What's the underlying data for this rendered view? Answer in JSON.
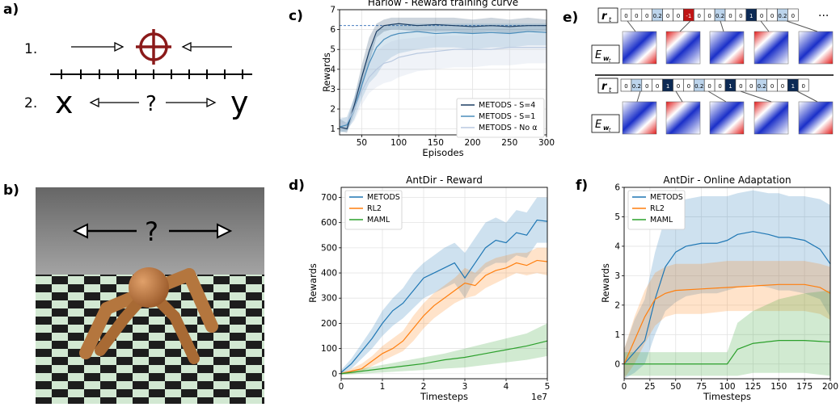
{
  "labels": {
    "a": "a)",
    "b": "b)",
    "c": "c)",
    "d": "d)",
    "e": "e)",
    "f": "f)"
  },
  "panel_a": {
    "row1": "1.",
    "row2": "2.",
    "left": "x",
    "right": "y",
    "question": "?"
  },
  "panel_b": {
    "question": "?"
  },
  "panel_e": {
    "r_label": "r",
    "r_sub": "t",
    "e_label": "E",
    "e_sub": "w",
    "e_subsub": "t",
    "dots": "···",
    "row1": [
      "0",
      "0",
      "0",
      "0.2",
      "0",
      "0",
      "-1",
      "0",
      "0",
      "0.2",
      "0",
      "0",
      "1",
      "0",
      "0",
      "0.2",
      "0"
    ],
    "row2": [
      "0",
      "0.2",
      "0",
      "0",
      "1",
      "0",
      "0",
      "0.2",
      "0",
      "0",
      "1",
      "0",
      "0",
      "0.2",
      "0",
      "0",
      "1",
      "0"
    ]
  },
  "colors": {
    "metods": "#1f77b4",
    "rl2": "#ff7f0e",
    "maml": "#2ca02c",
    "harlow_s4": "#1d3e63",
    "harlow_s1": "#4a8dbb",
    "harlow_no": "#b9c9e0",
    "target": "#8b1a1a"
  },
  "chart_data": [
    {
      "id": "harlow",
      "type": "line",
      "title": "Harlow - Reward training curve",
      "xlabel": "Episodes",
      "ylabel": "Rewards",
      "xlim": [
        20,
        300
      ],
      "ylim": [
        0.7,
        7.0
      ],
      "xticks": [
        50,
        100,
        150,
        200,
        250,
        300
      ],
      "yticks": [
        1,
        2,
        3,
        4,
        5,
        6,
        7
      ],
      "grid": true,
      "legend_position": "lower-right",
      "reference_line": 6.2,
      "series": [
        {
          "name": "METODS - S=4",
          "x": [
            20,
            30,
            40,
            50,
            60,
            70,
            80,
            90,
            100,
            125,
            150,
            175,
            200,
            225,
            250,
            275,
            300
          ],
          "y": [
            1.1,
            1.0,
            2.2,
            3.6,
            4.9,
            5.9,
            6.2,
            6.25,
            6.3,
            6.2,
            6.25,
            6.2,
            6.15,
            6.2,
            6.15,
            6.2,
            6.2
          ],
          "lower": [
            0.9,
            0.8,
            1.8,
            3.0,
            4.3,
            5.6,
            5.9,
            6.0,
            6.0,
            5.9,
            5.9,
            5.9,
            5.8,
            5.9,
            5.8,
            5.9,
            5.9
          ],
          "upper": [
            1.5,
            1.3,
            2.6,
            4.2,
            5.6,
            6.3,
            6.5,
            6.6,
            6.6,
            6.6,
            6.6,
            6.6,
            6.5,
            6.6,
            6.5,
            6.6,
            6.5
          ]
        },
        {
          "name": "METODS - S=1",
          "x": [
            20,
            30,
            40,
            50,
            60,
            70,
            80,
            90,
            100,
            125,
            150,
            175,
            200,
            225,
            250,
            275,
            300
          ],
          "y": [
            1.1,
            1.2,
            2.0,
            3.2,
            4.3,
            5.1,
            5.5,
            5.7,
            5.8,
            5.9,
            5.8,
            5.85,
            5.8,
            5.85,
            5.8,
            5.9,
            5.85
          ],
          "lower": [
            0.8,
            0.9,
            1.5,
            2.5,
            3.3,
            3.7,
            4.3,
            4.6,
            4.8,
            5.0,
            5.1,
            5.1,
            5.0,
            5.1,
            5.1,
            5.2,
            5.2
          ],
          "upper": [
            1.5,
            1.6,
            2.6,
            3.8,
            5.0,
            5.9,
            6.2,
            6.3,
            6.3,
            6.3,
            6.3,
            6.3,
            6.3,
            6.3,
            6.3,
            6.3,
            6.3
          ]
        },
        {
          "name": "METODS - No α",
          "x": [
            20,
            30,
            40,
            50,
            60,
            70,
            80,
            90,
            100,
            125,
            150,
            175,
            200,
            225,
            250,
            275,
            300
          ],
          "y": [
            1.2,
            1.3,
            2.0,
            2.9,
            3.6,
            4.0,
            4.3,
            4.4,
            4.6,
            4.8,
            4.9,
            5.0,
            5.0,
            5.0,
            5.1,
            5.1,
            5.1
          ],
          "lower": [
            0.9,
            1.0,
            1.4,
            2.2,
            2.8,
            3.1,
            3.3,
            3.4,
            3.6,
            3.9,
            4.0,
            4.1,
            4.1,
            4.2,
            4.2,
            4.3,
            4.3
          ],
          "upper": [
            1.6,
            1.6,
            2.6,
            3.6,
            4.4,
            4.9,
            5.2,
            5.4,
            5.5,
            5.6,
            5.7,
            5.7,
            5.7,
            5.8,
            5.8,
            5.8,
            5.8
          ]
        }
      ]
    },
    {
      "id": "antdir_reward",
      "type": "line",
      "title": "AntDir - Reward",
      "xlabel": "Timesteps",
      "ylabel": "Rewards",
      "x_multiplier": "1e7",
      "xlim": [
        0,
        5
      ],
      "ylim": [
        -20,
        740
      ],
      "xticks": [
        0,
        1,
        2,
        3,
        4,
        5
      ],
      "yticks": [
        0,
        100,
        200,
        300,
        400,
        500,
        600,
        700
      ],
      "grid": true,
      "legend_position": "top-left",
      "series": [
        {
          "name": "METODS",
          "x": [
            0,
            0.25,
            0.5,
            0.75,
            1.0,
            1.25,
            1.5,
            1.75,
            2.0,
            2.25,
            2.5,
            2.75,
            3.0,
            3.25,
            3.5,
            3.75,
            4.0,
            4.25,
            4.5,
            4.75,
            5.0
          ],
          "y": [
            5,
            40,
            90,
            140,
            200,
            250,
            280,
            330,
            380,
            400,
            420,
            440,
            380,
            440,
            500,
            530,
            520,
            560,
            550,
            610,
            605
          ],
          "lower": [
            0,
            20,
            60,
            100,
            150,
            190,
            220,
            260,
            300,
            320,
            340,
            360,
            300,
            380,
            420,
            440,
            440,
            470,
            460,
            520,
            520
          ],
          "upper": [
            15,
            60,
            120,
            180,
            250,
            300,
            340,
            400,
            440,
            470,
            500,
            520,
            480,
            540,
            600,
            620,
            600,
            650,
            640,
            700,
            700
          ]
        },
        {
          "name": "RL2",
          "x": [
            0,
            0.25,
            0.5,
            0.75,
            1.0,
            1.25,
            1.5,
            1.75,
            2.0,
            2.25,
            2.5,
            2.75,
            3.0,
            3.25,
            3.5,
            3.75,
            4.0,
            4.25,
            4.5,
            4.75,
            5.0
          ],
          "y": [
            0,
            10,
            20,
            50,
            80,
            100,
            130,
            180,
            230,
            270,
            300,
            330,
            360,
            350,
            390,
            410,
            420,
            440,
            430,
            450,
            445
          ],
          "lower": [
            0,
            0,
            10,
            30,
            50,
            70,
            90,
            130,
            180,
            220,
            250,
            280,
            300,
            310,
            340,
            360,
            380,
            400,
            390,
            400,
            390
          ],
          "upper": [
            5,
            20,
            40,
            70,
            110,
            140,
            170,
            230,
            280,
            320,
            350,
            380,
            420,
            400,
            440,
            460,
            470,
            480,
            480,
            500,
            500
          ]
        },
        {
          "name": "MAML",
          "x": [
            0,
            0.5,
            1.0,
            1.5,
            2.0,
            2.5,
            3.0,
            3.5,
            4.0,
            4.5,
            5.0
          ],
          "y": [
            0,
            10,
            20,
            30,
            40,
            55,
            65,
            80,
            95,
            110,
            130
          ],
          "lower": [
            -5,
            0,
            5,
            10,
            15,
            20,
            25,
            35,
            45,
            55,
            70
          ],
          "upper": [
            5,
            20,
            35,
            50,
            65,
            80,
            100,
            120,
            140,
            160,
            200
          ]
        }
      ]
    },
    {
      "id": "antdir_adapt",
      "type": "line",
      "title": "AntDir - Online Adaptation",
      "xlabel": "Timesteps",
      "ylabel": "Rewards",
      "xlim": [
        0,
        200
      ],
      "ylim": [
        -0.5,
        6.0
      ],
      "xticks": [
        0,
        25,
        50,
        75,
        100,
        125,
        150,
        175,
        200
      ],
      "yticks": [
        0,
        1,
        2,
        3,
        4,
        5,
        6
      ],
      "grid": true,
      "legend_position": "top-left",
      "series": [
        {
          "name": "METODS",
          "x": [
            0,
            10,
            20,
            30,
            40,
            50,
            60,
            75,
            90,
            100,
            110,
            125,
            140,
            150,
            160,
            175,
            190,
            200
          ],
          "y": [
            0,
            0.4,
            0.8,
            2.2,
            3.3,
            3.8,
            4.0,
            4.1,
            4.1,
            4.2,
            4.4,
            4.5,
            4.4,
            4.3,
            4.3,
            4.2,
            3.9,
            3.4
          ],
          "lower": [
            -0.5,
            -0.3,
            0.0,
            1.0,
            1.8,
            2.1,
            2.3,
            2.4,
            2.4,
            2.5,
            2.6,
            2.7,
            2.6,
            2.5,
            2.5,
            2.4,
            2.2,
            1.6
          ],
          "upper": [
            0.5,
            1.5,
            2.2,
            3.8,
            5.0,
            5.5,
            5.6,
            5.7,
            5.7,
            5.7,
            5.8,
            5.9,
            5.8,
            5.8,
            5.7,
            5.7,
            5.6,
            5.4
          ]
        },
        {
          "name": "RL2",
          "x": [
            0,
            10,
            20,
            30,
            40,
            50,
            75,
            100,
            125,
            150,
            175,
            190,
            200
          ],
          "y": [
            0,
            0.8,
            1.6,
            2.2,
            2.4,
            2.5,
            2.55,
            2.6,
            2.65,
            2.7,
            2.7,
            2.6,
            2.4
          ],
          "lower": [
            -0.5,
            0.0,
            0.7,
            1.3,
            1.6,
            1.7,
            1.7,
            1.8,
            1.8,
            1.8,
            1.8,
            1.7,
            1.5
          ],
          "upper": [
            0.5,
            1.6,
            2.5,
            3.1,
            3.3,
            3.4,
            3.4,
            3.5,
            3.5,
            3.5,
            3.5,
            3.4,
            3.3
          ]
        },
        {
          "name": "MAML",
          "x": [
            0,
            25,
            50,
            75,
            100,
            110,
            125,
            150,
            175,
            200
          ],
          "y": [
            0,
            0,
            0,
            0,
            0,
            0.5,
            0.7,
            0.8,
            0.8,
            0.75
          ],
          "lower": [
            -0.4,
            -0.4,
            -0.4,
            -0.4,
            -0.4,
            -0.4,
            -0.3,
            -0.3,
            -0.3,
            -0.4
          ],
          "upper": [
            0.4,
            0.4,
            0.4,
            0.4,
            0.4,
            1.4,
            1.8,
            2.2,
            2.4,
            2.5
          ]
        }
      ]
    }
  ]
}
